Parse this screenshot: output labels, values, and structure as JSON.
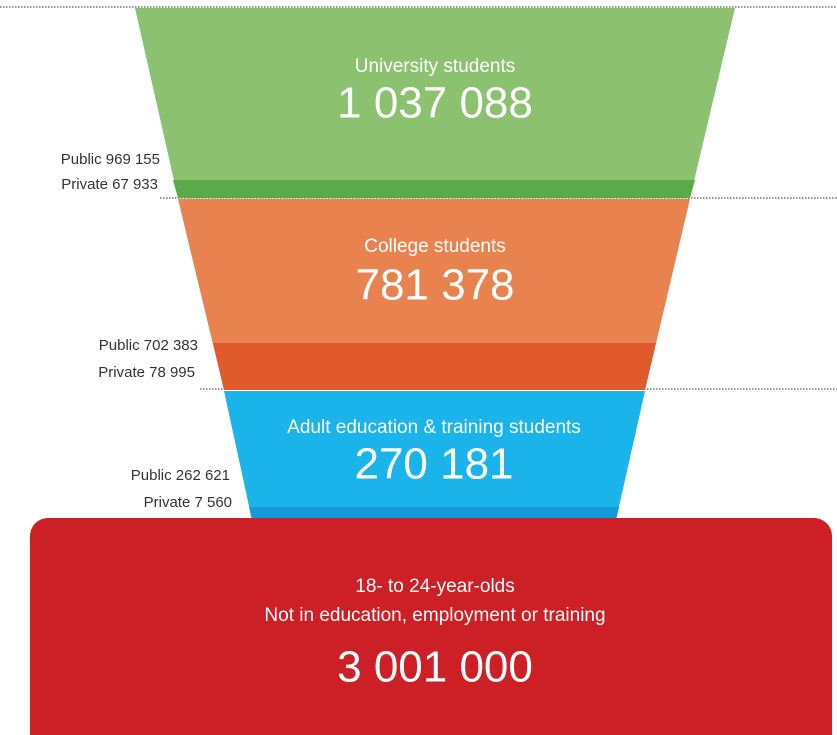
{
  "tiers": [
    {
      "title": "University students",
      "total": "1 037 088",
      "public": "Public 969 155",
      "private": "Private 67 933"
    },
    {
      "title": "College students",
      "total": "781 378",
      "public": "Public 702 383",
      "private": "Private 78 995"
    },
    {
      "title": "Adult education & training students",
      "total": "270 181",
      "public": "Public 262 621",
      "private": "Private 7 560"
    }
  ],
  "bottom": {
    "line1": "18- to 24-year-olds",
    "line2": "Not in education, employment or training",
    "total": "3 001 000"
  }
}
